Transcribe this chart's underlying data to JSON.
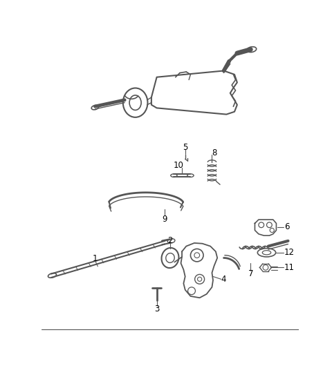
{
  "bg_color": "#ffffff",
  "line_color": "#555555",
  "fig_width": 4.8,
  "fig_height": 5.46,
  "dpi": 100,
  "label_fontsize": 8.5
}
